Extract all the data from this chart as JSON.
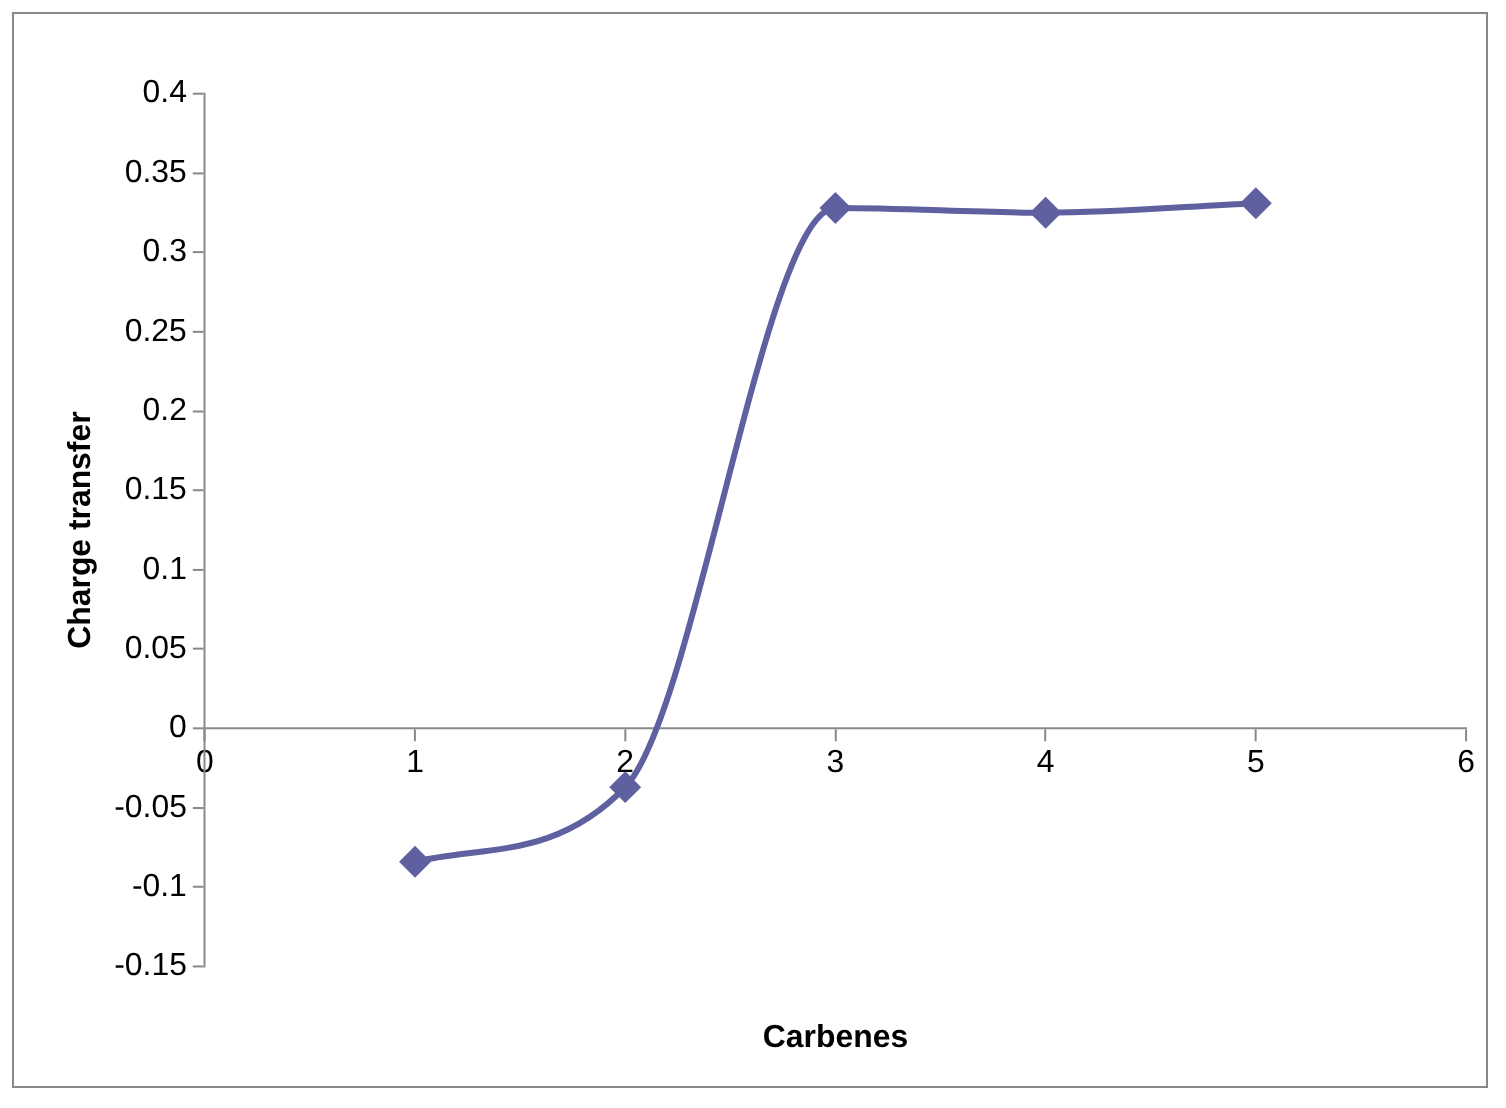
{
  "chart_data": {
    "type": "line",
    "xlabel": "Carbenes",
    "ylabel": "Charge transfer",
    "x": [
      1,
      2,
      3,
      4,
      5
    ],
    "series": [
      {
        "color": "#5e60a0",
        "values": [
          -0.084,
          -0.037,
          0.328,
          0.325,
          0.331
        ]
      }
    ],
    "xlim": [
      0,
      6
    ],
    "xticks": [
      0,
      1,
      2,
      3,
      4,
      5,
      6
    ],
    "ylim": [
      -0.15,
      0.4
    ],
    "yticks": [
      -0.15,
      -0.1,
      -0.05,
      0,
      0.05,
      0.1,
      0.15,
      0.2,
      0.25,
      0.3,
      0.35,
      0.4
    ],
    "grid": false,
    "legend": false,
    "marker": "diamond",
    "line_style": "solid"
  }
}
